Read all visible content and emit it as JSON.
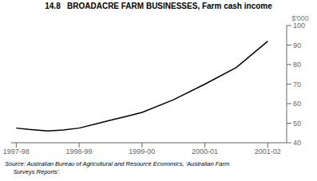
{
  "chart_data": {
    "type": "line",
    "title": "14.8   BROADACRE FARM BUSINESSES, Farm cash income",
    "ylabel": "$'000",
    "x": [
      0.0,
      0.2,
      0.5,
      0.75,
      1.0,
      1.25,
      1.5,
      1.75,
      2.0,
      2.5,
      3.0,
      3.5,
      4.0
    ],
    "values": [
      47.5,
      46.8,
      46.0,
      46.5,
      47.5,
      49.5,
      51.5,
      53.5,
      55.5,
      62.0,
      70.0,
      78.5,
      92.0
    ],
    "color": "#000000",
    "xlim": [
      -0.08,
      4.3
    ],
    "xticks": [
      {
        "value": 0,
        "label": "1997-98"
      },
      {
        "value": 1,
        "label": "1998-99"
      },
      {
        "value": 2,
        "label": "1999-00"
      },
      {
        "value": 3,
        "label": "2000-01"
      },
      {
        "value": 4,
        "label": "2001-02"
      }
    ],
    "ylim": [
      40,
      100
    ],
    "yticks": [
      40,
      50,
      60,
      70,
      80,
      90,
      100
    ],
    "grid": false,
    "annotations": [
      "Source: Australian Bureau of Agricultural and Resource Economics, ‘Australian Farm",
      "     Surveys Reports’."
    ]
  }
}
